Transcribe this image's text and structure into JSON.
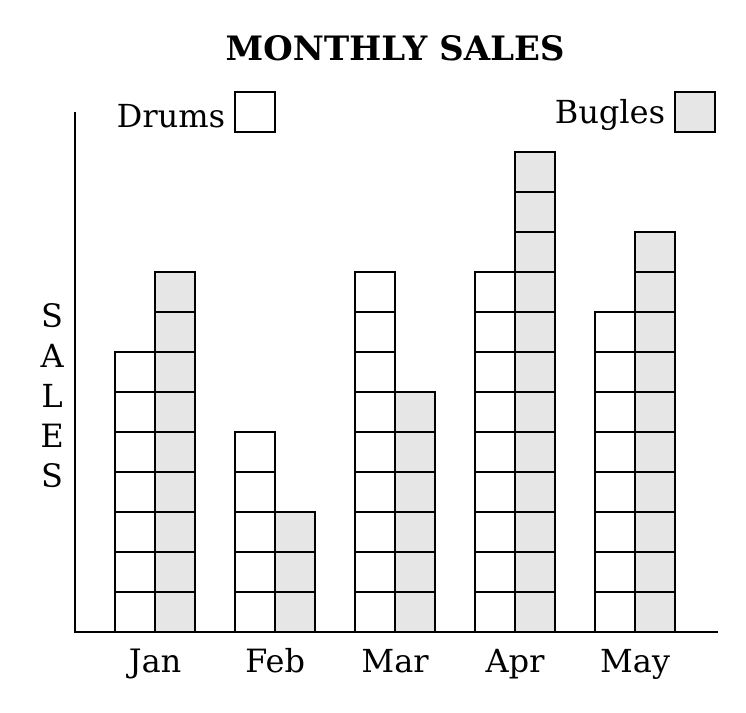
{
  "chart_data": {
    "type": "bar",
    "title": "MONTHLY SALES",
    "xlabel": "",
    "ylabel": "SALES",
    "categories": [
      "Jan",
      "Feb",
      "Mar",
      "Apr",
      "May"
    ],
    "series": [
      {
        "name": "Drums",
        "values": [
          7,
          5,
          9,
          9,
          8
        ],
        "fill": "#ffffff"
      },
      {
        "name": "Bugles",
        "values": [
          9,
          3,
          6,
          12,
          10
        ],
        "fill": "#e6e6e6"
      }
    ],
    "ylim": [
      0,
      12
    ],
    "grid": false,
    "legend": [
      "top-left",
      "top-right"
    ],
    "colors": {
      "stroke": "#000000",
      "drums": "#ffffff",
      "bugles": "#e6e6e6"
    }
  }
}
